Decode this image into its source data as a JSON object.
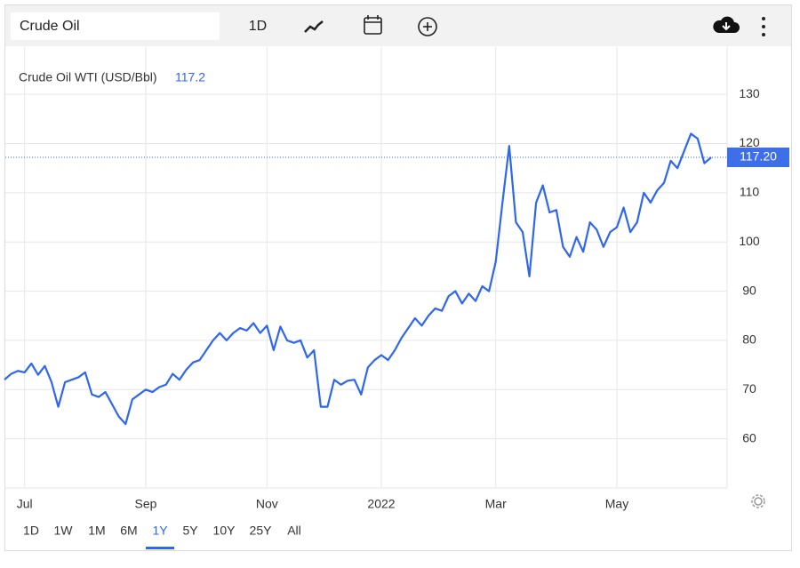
{
  "search": "Crude Oil",
  "interval": "1D",
  "ranges": [
    "1D",
    "1W",
    "1M",
    "6M",
    "1Y",
    "5Y",
    "10Y",
    "25Y",
    "All"
  ],
  "active_range": "1Y",
  "chart_data": {
    "type": "line",
    "title": "Crude Oil WTI (USD/Bbl)",
    "categories": [
      null,
      null,
      null,
      "Jul",
      null,
      null,
      null,
      null,
      null,
      null,
      null,
      null,
      null,
      null,
      null,
      null,
      null,
      null,
      null,
      null,
      null,
      "Sep",
      null,
      null,
      null,
      null,
      null,
      null,
      null,
      null,
      null,
      null,
      null,
      null,
      null,
      null,
      null,
      null,
      null,
      "Nov",
      null,
      null,
      null,
      null,
      null,
      null,
      null,
      null,
      null,
      null,
      null,
      null,
      null,
      null,
      null,
      null,
      "2022",
      null,
      null,
      null,
      null,
      null,
      null,
      null,
      null,
      null,
      null,
      null,
      null,
      null,
      null,
      null,
      null,
      "Mar",
      null,
      null,
      null,
      null,
      null,
      null,
      null,
      null,
      null,
      null,
      null,
      null,
      null,
      null,
      null,
      null,
      null,
      "May",
      null,
      null,
      null,
      null,
      null,
      null,
      null,
      null,
      null,
      null,
      null,
      null,
      null,
      null
    ],
    "series": [
      {
        "name": "Crude Oil WTI (USD/Bbl)",
        "color": "#2f66ee",
        "values": [
          72,
          73.2,
          73.8,
          73.5,
          75.3,
          73,
          74.8,
          71.5,
          66.5,
          71.5,
          72,
          72.5,
          73.5,
          69,
          68.5,
          69.5,
          67,
          64.5,
          63,
          68,
          69,
          70,
          69.5,
          70.5,
          71,
          73.2,
          72,
          74,
          75.5,
          76,
          78,
          80,
          81.5,
          80,
          81.5,
          82.5,
          82,
          83.5,
          81.5,
          83,
          78,
          82.8,
          80,
          79.5,
          80,
          76.5,
          78,
          66.5,
          66.5,
          72,
          71,
          71.8,
          72,
          69,
          74.5,
          76,
          77,
          76,
          78,
          80.5,
          82.5,
          84.5,
          83,
          85,
          86.5,
          86,
          89,
          90,
          87.5,
          89.5,
          88,
          91,
          90,
          96,
          108,
          119.5,
          104,
          102,
          93,
          108,
          111.5,
          106,
          106.5,
          99,
          97,
          101,
          98,
          104,
          102.5,
          99,
          102,
          103,
          107,
          102,
          104,
          110,
          108,
          110.5,
          112,
          116.5,
          115,
          118.5,
          122,
          121,
          116,
          117.2
        ]
      }
    ],
    "last_price_label": "117.20",
    "ylim": [
      50,
      139.6
    ],
    "yticks": [
      60,
      70,
      80,
      90,
      100,
      110,
      120,
      130
    ],
    "grid": true
  }
}
